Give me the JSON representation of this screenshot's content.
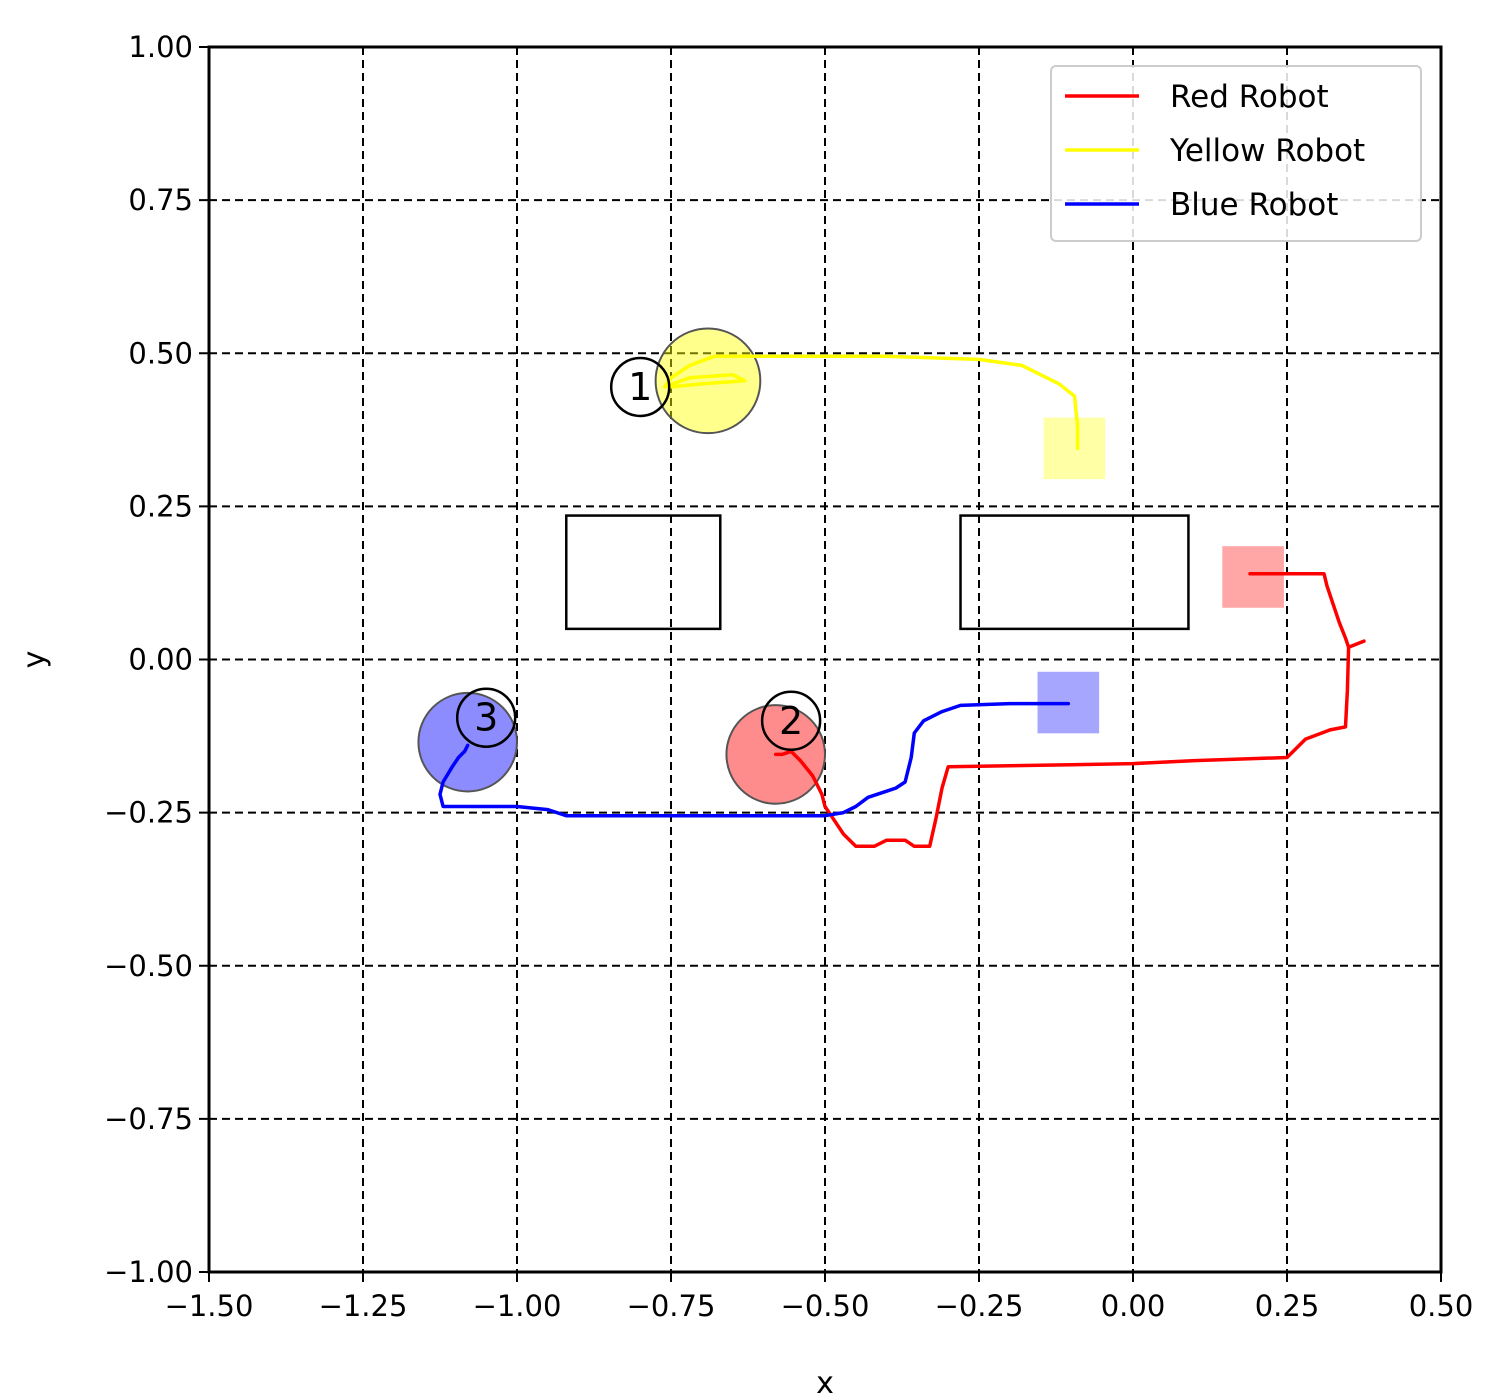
{
  "chart_data": {
    "type": "line",
    "xlabel": "x",
    "ylabel": "y",
    "xlim": [
      -1.5,
      0.5
    ],
    "ylim": [
      -1.0,
      1.0
    ],
    "x_ticks": [
      -1.5,
      -1.25,
      -1.0,
      -0.75,
      -0.5,
      -0.25,
      0.0,
      0.25,
      0.5
    ],
    "y_ticks": [
      -1.0,
      -0.75,
      -0.5,
      -0.25,
      0.0,
      0.25,
      0.5,
      0.75,
      1.0
    ],
    "x_tick_labels": [
      "−1.50",
      "−1.25",
      "−1.00",
      "−0.75",
      "−0.50",
      "−0.25",
      "0.00",
      "0.25",
      "0.50"
    ],
    "y_tick_labels": [
      "−1.00",
      "−0.75",
      "−0.50",
      "−0.25",
      "0.00",
      "0.25",
      "0.50",
      "0.75",
      "1.00"
    ],
    "grid": true,
    "grid_style": "dashed",
    "legend_position": "top-right",
    "series": [
      {
        "name": "Red Robot",
        "color": "#ff0000",
        "points": [
          [
            0.19,
            0.14
          ],
          [
            0.31,
            0.14
          ],
          [
            0.315,
            0.12
          ],
          [
            0.325,
            0.09
          ],
          [
            0.335,
            0.06
          ],
          [
            0.345,
            0.035
          ],
          [
            0.35,
            0.02
          ],
          [
            0.375,
            0.03
          ],
          [
            0.35,
            0.02
          ],
          [
            0.348,
            -0.05
          ],
          [
            0.345,
            -0.11
          ],
          [
            0.32,
            -0.115
          ],
          [
            0.28,
            -0.13
          ],
          [
            0.25,
            -0.16
          ],
          [
            0.1,
            -0.165
          ],
          [
            0.0,
            -0.17
          ],
          [
            -0.1,
            -0.172
          ],
          [
            -0.3,
            -0.175
          ],
          [
            -0.31,
            -0.21
          ],
          [
            -0.32,
            -0.26
          ],
          [
            -0.33,
            -0.305
          ],
          [
            -0.355,
            -0.305
          ],
          [
            -0.37,
            -0.295
          ],
          [
            -0.4,
            -0.295
          ],
          [
            -0.42,
            -0.305
          ],
          [
            -0.45,
            -0.305
          ],
          [
            -0.47,
            -0.285
          ],
          [
            -0.49,
            -0.255
          ],
          [
            -0.5,
            -0.24
          ],
          [
            -0.505,
            -0.22
          ],
          [
            -0.52,
            -0.19
          ],
          [
            -0.54,
            -0.165
          ],
          [
            -0.555,
            -0.15
          ],
          [
            -0.57,
            -0.155
          ],
          [
            -0.58,
            -0.155
          ]
        ]
      },
      {
        "name": "Yellow Robot",
        "color": "#ffff00",
        "points": [
          [
            -0.09,
            0.345
          ],
          [
            -0.09,
            0.38
          ],
          [
            -0.095,
            0.43
          ],
          [
            -0.12,
            0.45
          ],
          [
            -0.18,
            0.48
          ],
          [
            -0.25,
            0.49
          ],
          [
            -0.4,
            0.495
          ],
          [
            -0.55,
            0.495
          ],
          [
            -0.68,
            0.495
          ],
          [
            -0.72,
            0.48
          ],
          [
            -0.75,
            0.46
          ],
          [
            -0.76,
            0.445
          ],
          [
            -0.72,
            0.46
          ],
          [
            -0.65,
            0.465
          ],
          [
            -0.63,
            0.455
          ],
          [
            -0.7,
            0.45
          ],
          [
            -0.75,
            0.445
          ]
        ]
      },
      {
        "name": "Blue Robot",
        "color": "#0000ff",
        "points": [
          [
            -0.105,
            -0.072
          ],
          [
            -0.2,
            -0.072
          ],
          [
            -0.28,
            -0.075
          ],
          [
            -0.31,
            -0.085
          ],
          [
            -0.34,
            -0.1
          ],
          [
            -0.355,
            -0.12
          ],
          [
            -0.36,
            -0.16
          ],
          [
            -0.37,
            -0.2
          ],
          [
            -0.385,
            -0.21
          ],
          [
            -0.4,
            -0.215
          ],
          [
            -0.43,
            -0.225
          ],
          [
            -0.45,
            -0.24
          ],
          [
            -0.47,
            -0.25
          ],
          [
            -0.5,
            -0.255
          ],
          [
            -0.6,
            -0.255
          ],
          [
            -0.8,
            -0.255
          ],
          [
            -0.92,
            -0.255
          ],
          [
            -0.95,
            -0.245
          ],
          [
            -1.0,
            -0.24
          ],
          [
            -1.06,
            -0.24
          ],
          [
            -1.12,
            -0.24
          ],
          [
            -1.125,
            -0.22
          ],
          [
            -1.12,
            -0.2
          ],
          [
            -1.105,
            -0.175
          ],
          [
            -1.095,
            -0.16
          ],
          [
            -1.085,
            -0.15
          ],
          [
            -1.08,
            -0.14
          ]
        ]
      }
    ],
    "robots": [
      {
        "label": "1",
        "color": "#ffff00",
        "x": -0.69,
        "y": 0.455,
        "r": 0.085,
        "marker_x": -0.8,
        "marker_y": 0.445
      },
      {
        "label": "2",
        "color": "#ff0000",
        "x": -0.58,
        "y": -0.155,
        "r": 0.08,
        "marker_x": -0.555,
        "marker_y": -0.1
      },
      {
        "label": "3",
        "color": "#0000ff",
        "x": -1.08,
        "y": -0.135,
        "r": 0.08,
        "marker_x": -1.05,
        "marker_y": -0.095
      }
    ],
    "goals": [
      {
        "color": "#ffff00",
        "x": -0.095,
        "y": 0.345,
        "half": 0.05
      },
      {
        "color": "#ff0000",
        "x": 0.195,
        "y": 0.135,
        "half": 0.05
      },
      {
        "color": "#0000ff",
        "x": -0.105,
        "y": -0.07,
        "half": 0.05
      }
    ],
    "obstacles": [
      {
        "x0": -0.92,
        "x1": -0.67,
        "y0": 0.05,
        "y1": 0.235
      },
      {
        "x0": -0.28,
        "x1": 0.09,
        "y0": 0.05,
        "y1": 0.235
      }
    ]
  }
}
